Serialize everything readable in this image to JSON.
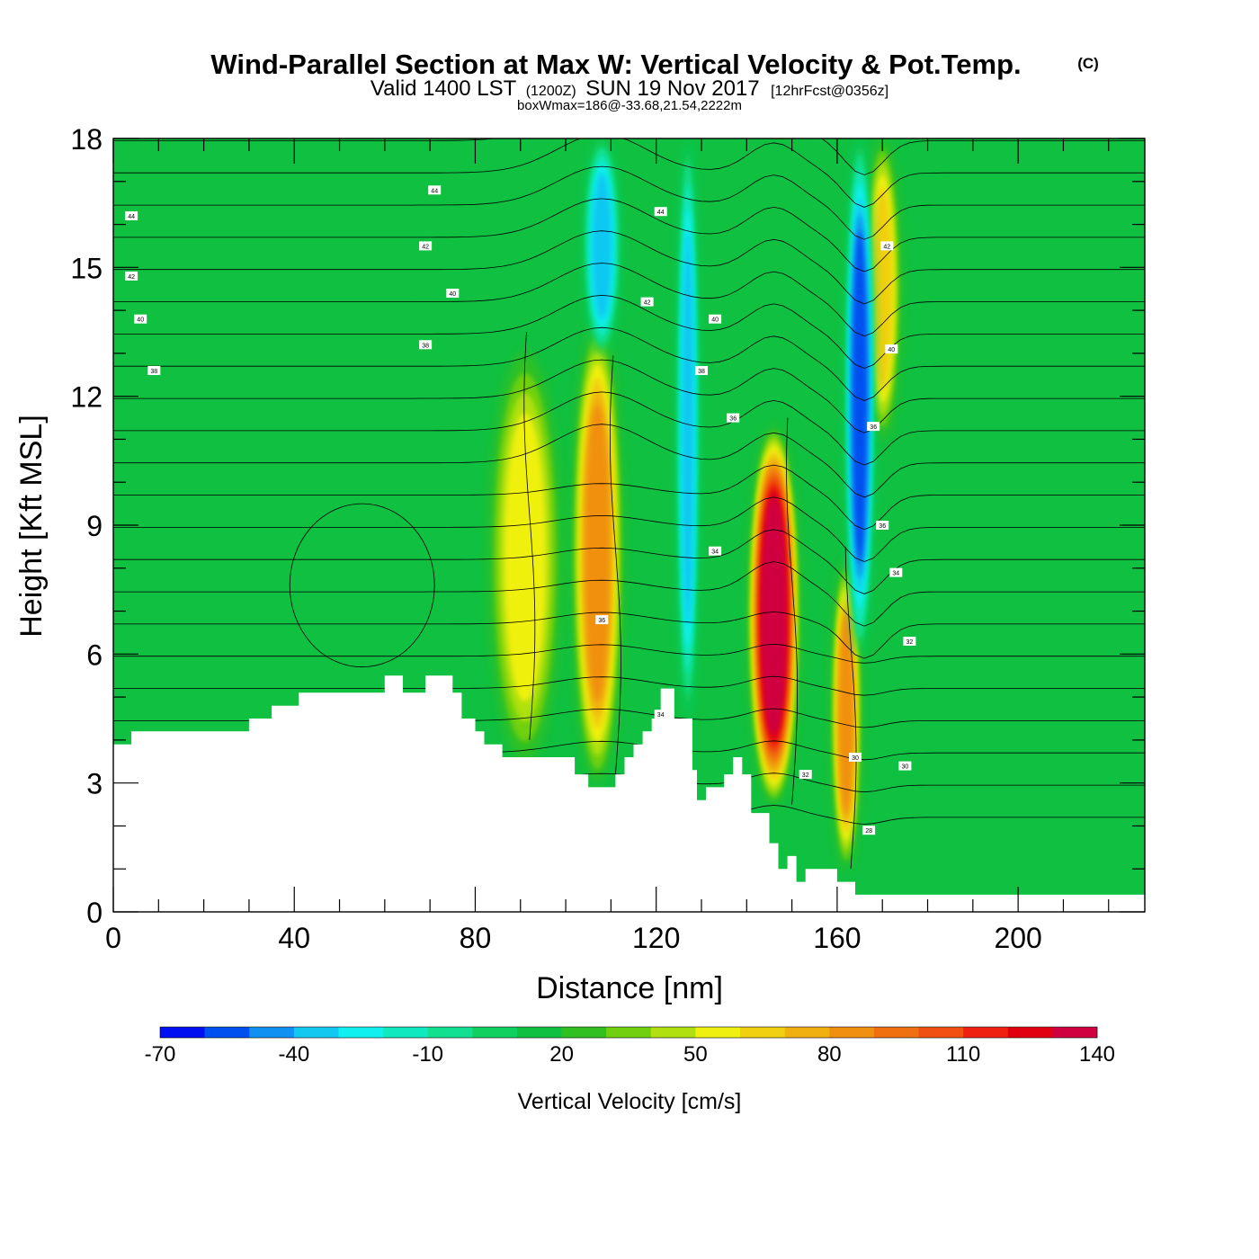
{
  "title": {
    "main": "Wind-Parallel Section at Max W: Vertical Velocity & Pot.Temp.",
    "tag": "(C)",
    "subtitle_a": "Valid 1400 LST",
    "subtitle_b": "(1200Z)",
    "subtitle_c": "SUN 19 Nov 2017",
    "subtitle_d": "[12hrFcst@0356z]",
    "subtitle_2": "boxWmax=186@-33.68,21.54,2222m"
  },
  "chart_data": {
    "type": "heatmap",
    "xlabel": "Distance [nm]",
    "ylabel": "Height [Kft MSL]",
    "xlim": [
      0,
      228
    ],
    "ylim": [
      0,
      18
    ],
    "x_ticks": [
      0,
      40,
      80,
      120,
      160,
      200
    ],
    "y_ticks": [
      0,
      3,
      6,
      9,
      12,
      15,
      18
    ],
    "x_tick_labels": [
      "0",
      "40",
      "80",
      "120",
      "160",
      "200"
    ],
    "y_tick_labels": [
      "0",
      "3",
      "6",
      "9",
      "12",
      "15",
      "18"
    ],
    "colorbar": {
      "title": "Vertical Velocity [cm/s]",
      "min": -70,
      "step": 10,
      "colors": [
        "#0010f0",
        "#0050f0",
        "#1090f0",
        "#10c8f0",
        "#10f0f0",
        "#10e8c0",
        "#10e090",
        "#10d060",
        "#10c040",
        "#30c020",
        "#70d010",
        "#b0e010",
        "#f0f010",
        "#f0d010",
        "#f0b010",
        "#f09010",
        "#f07010",
        "#f05010",
        "#f02010",
        "#e00010",
        "#d00040"
      ],
      "tick_values": [
        -70,
        -40,
        -10,
        20,
        50,
        80,
        110,
        140
      ],
      "tick_labels": [
        "-70",
        "-40",
        "-10",
        "20",
        "50",
        "80",
        "110",
        "140"
      ]
    },
    "terrain": {
      "x": [
        0,
        4,
        4,
        30,
        30,
        35,
        35,
        41,
        41,
        60,
        60,
        64,
        64,
        69,
        69,
        75,
        75,
        77,
        77,
        80,
        80,
        82,
        82,
        86,
        86,
        102,
        102,
        105,
        105,
        111,
        111,
        113,
        113,
        115,
        115,
        117,
        117,
        119,
        119,
        121,
        121,
        124,
        124,
        128,
        128,
        129,
        129,
        131,
        131,
        135,
        135,
        137,
        137,
        139,
        139,
        141,
        141,
        145,
        145,
        147,
        147,
        149,
        149,
        151,
        151,
        153,
        153,
        160,
        160,
        164,
        164,
        166,
        166,
        168,
        168,
        172,
        172,
        176,
        176,
        228
      ],
      "y": [
        3.9,
        3.9,
        4.2,
        4.2,
        4.5,
        4.5,
        4.8,
        4.8,
        5.1,
        5.1,
        5.5,
        5.5,
        5.1,
        5.1,
        5.5,
        5.5,
        5.1,
        5.1,
        4.5,
        4.5,
        4.2,
        4.2,
        3.9,
        3.9,
        3.6,
        3.6,
        3.2,
        3.2,
        2.9,
        2.9,
        3.2,
        3.2,
        3.6,
        3.6,
        3.9,
        3.9,
        4.2,
        4.2,
        4.5,
        4.5,
        5.2,
        5.2,
        4.5,
        4.5,
        3.3,
        3.3,
        2.6,
        2.6,
        2.9,
        2.9,
        3.2,
        3.2,
        3.6,
        3.6,
        3.2,
        3.2,
        2.3,
        2.3,
        1.6,
        1.6,
        1.0,
        1.0,
        1.3,
        1.3,
        0.7,
        0.7,
        1.0,
        1.0,
        0.7,
        0.7,
        0.4,
        0.4,
        0.4,
        0.4,
        0.4,
        0.4,
        0.4,
        0.4,
        0.4,
        0.4
      ]
    },
    "vertical_velocity_features": [
      {
        "x": 91,
        "y_bottom": 3.5,
        "y_top": 13.0,
        "width": 10,
        "peak": 55
      },
      {
        "x": 107,
        "y_bottom": 3.0,
        "y_top": 13.7,
        "width": 7,
        "peak": 80
      },
      {
        "x": 146,
        "y_bottom": 2.5,
        "y_top": 11.3,
        "width": 7,
        "peak": 140
      },
      {
        "x": 162,
        "y_bottom": 1.0,
        "y_top": 8.2,
        "width": 4,
        "peak": 80
      },
      {
        "x": 170,
        "y_bottom": 11.0,
        "y_top": 18.0,
        "width": 5,
        "peak": 60
      },
      {
        "x": 165,
        "y_bottom": 6.0,
        "y_top": 18.0,
        "width": 4,
        "peak": -60
      },
      {
        "x": 127,
        "y_bottom": 4.5,
        "y_top": 18.0,
        "width": 3,
        "peak": -40
      },
      {
        "x": 108,
        "y_bottom": 13.0,
        "y_top": 18.0,
        "width": 5,
        "peak": -40
      }
    ],
    "contour_labels": [
      {
        "x": 4,
        "y": 16.2,
        "text": "44"
      },
      {
        "x": 71,
        "y": 16.8,
        "text": "44"
      },
      {
        "x": 121,
        "y": 16.3,
        "text": "44"
      },
      {
        "x": 4,
        "y": 14.8,
        "text": "42"
      },
      {
        "x": 69,
        "y": 15.5,
        "text": "42"
      },
      {
        "x": 118,
        "y": 14.2,
        "text": "42"
      },
      {
        "x": 171,
        "y": 15.5,
        "text": "42"
      },
      {
        "x": 6,
        "y": 13.8,
        "text": "40"
      },
      {
        "x": 75,
        "y": 14.4,
        "text": "40"
      },
      {
        "x": 133,
        "y": 13.8,
        "text": "40"
      },
      {
        "x": 172,
        "y": 13.1,
        "text": "40"
      },
      {
        "x": 9,
        "y": 12.6,
        "text": "38"
      },
      {
        "x": 69,
        "y": 13.2,
        "text": "38"
      },
      {
        "x": 130,
        "y": 12.6,
        "text": "38"
      },
      {
        "x": 137,
        "y": 11.5,
        "text": "36"
      },
      {
        "x": 168,
        "y": 11.3,
        "text": "36"
      },
      {
        "x": 170,
        "y": 9.0,
        "text": "36"
      },
      {
        "x": 133,
        "y": 8.4,
        "text": "34"
      },
      {
        "x": 173,
        "y": 7.9,
        "text": "34"
      },
      {
        "x": 108,
        "y": 6.8,
        "text": "36"
      },
      {
        "x": 176,
        "y": 6.3,
        "text": "32"
      },
      {
        "x": 121,
        "y": 4.6,
        "text": "34"
      },
      {
        "x": 153,
        "y": 3.2,
        "text": "32"
      },
      {
        "x": 164,
        "y": 3.6,
        "text": "30"
      },
      {
        "x": 175,
        "y": 3.4,
        "text": "30"
      },
      {
        "x": 167,
        "y": 1.9,
        "text": "28"
      }
    ]
  }
}
